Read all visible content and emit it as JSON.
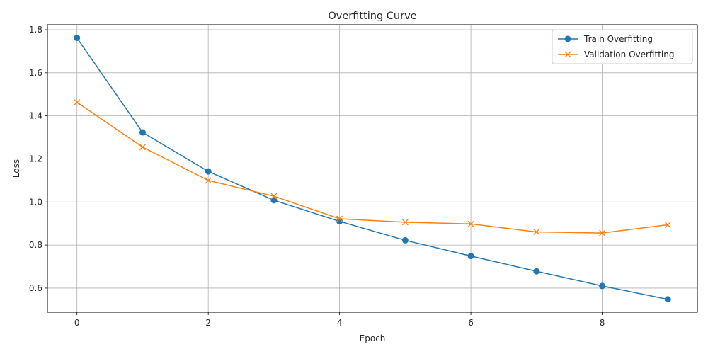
{
  "chart_data": {
    "type": "line",
    "title": "Overfitting Curve",
    "xlabel": "Epoch",
    "ylabel": "Loss",
    "xlim": [
      -0.45,
      9.45
    ],
    "ylim": [
      0.488,
      1.823
    ],
    "xticks": [
      0,
      2,
      4,
      6,
      8
    ],
    "xtick_labels": [
      "0",
      "2",
      "4",
      "6",
      "8"
    ],
    "yticks": [
      0.6,
      0.8,
      1.0,
      1.2,
      1.4,
      1.6,
      1.8
    ],
    "ytick_labels": [
      "0.6",
      "0.8",
      "1.0",
      "1.2",
      "1.4",
      "1.6",
      "1.8"
    ],
    "grid": true,
    "legend_position": "top-right",
    "x": [
      0,
      1,
      2,
      3,
      4,
      5,
      6,
      7,
      8,
      9
    ],
    "series": [
      {
        "name": "Train Overfitting",
        "color": "#1f77b4",
        "marker": "circle",
        "values": [
          1.762,
          1.323,
          1.142,
          1.008,
          0.91,
          0.822,
          0.749,
          0.678,
          0.61,
          0.548
        ]
      },
      {
        "name": "Validation Overfitting",
        "color": "#ff7f0e",
        "marker": "x",
        "values": [
          1.463,
          1.255,
          1.1,
          1.027,
          0.922,
          0.906,
          0.898,
          0.861,
          0.856,
          0.894
        ]
      }
    ]
  }
}
